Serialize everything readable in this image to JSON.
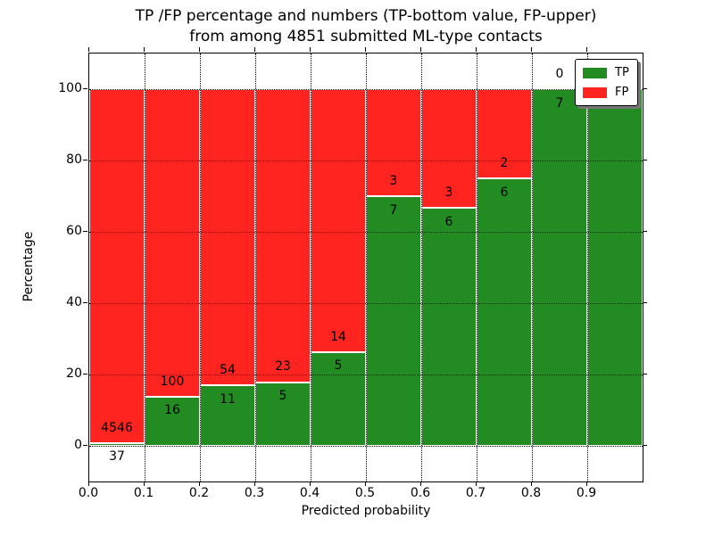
{
  "figure": {
    "background": "#ffffff"
  },
  "chart_data": {
    "type": "bar",
    "stacked": true,
    "normalized": "percent",
    "title_line1": "TP /FP percentage and numbers (TP-bottom value, FP-upper)",
    "title_line2": "from among 4851 submitted ML-type contacts",
    "xlabel": "Predicted probability",
    "ylabel": "Percentage",
    "total_contacts": 4851,
    "bin_width": 0.1,
    "categories": [
      "0.0-0.1",
      "0.1-0.2",
      "0.2-0.3",
      "0.3-0.4",
      "0.4-0.5",
      "0.5-0.6",
      "0.6-0.7",
      "0.7-0.8",
      "0.8-0.9",
      "0.9-1.0"
    ],
    "series": [
      {
        "name": "TP",
        "color": "#228B22",
        "counts": [
          37,
          16,
          11,
          5,
          5,
          7,
          6,
          6,
          7,
          6
        ]
      },
      {
        "name": "FP",
        "color": "#FF2420",
        "counts": [
          4546,
          100,
          54,
          23,
          14,
          3,
          3,
          2,
          0,
          0
        ]
      }
    ],
    "tp_percent": [
      0.81,
      13.79,
      16.92,
      17.86,
      26.32,
      70.0,
      66.67,
      75.0,
      100.0,
      100.0
    ],
    "xticks": [
      "0.0",
      "0.1",
      "0.2",
      "0.3",
      "0.4",
      "0.5",
      "0.6",
      "0.7",
      "0.8",
      "0.9"
    ],
    "yticks": [
      "0",
      "20",
      "40",
      "60",
      "80",
      "100"
    ],
    "xlim": [
      0.0,
      1.0
    ],
    "ylim": [
      -10,
      110
    ],
    "grid": true,
    "grid_style": "dotted",
    "legend": {
      "position": "upper right",
      "entries": [
        {
          "label": "TP",
          "color": "#228B22"
        },
        {
          "label": "FP",
          "color": "#FF2420"
        }
      ]
    }
  }
}
